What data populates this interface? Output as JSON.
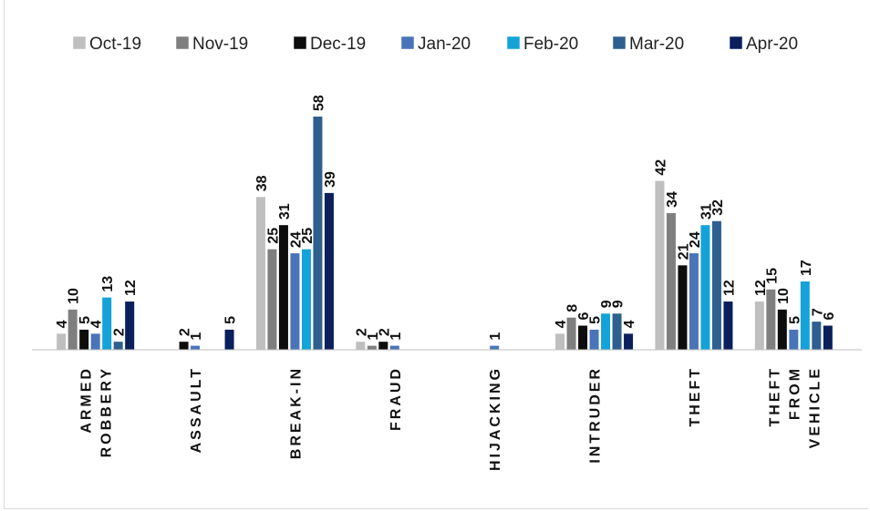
{
  "chart_data": {
    "type": "bar",
    "categories": [
      [
        "ARMED",
        "ROBBERY"
      ],
      [
        "ASSAULT"
      ],
      [
        "BREAK-IN"
      ],
      [
        "FRAUD"
      ],
      [
        "HIJACKING"
      ],
      [
        "INTRUDER"
      ],
      [
        "THEFT"
      ],
      [
        "THEFT",
        "FROM",
        "VEHICLE"
      ]
    ],
    "series": [
      {
        "name": "Oct-19",
        "color": "#bfbfbf",
        "values": [
          4,
          0,
          38,
          2,
          0,
          4,
          42,
          12
        ]
      },
      {
        "name": "Nov-19",
        "color": "#7f7f7f",
        "values": [
          10,
          0,
          25,
          1,
          0,
          8,
          34,
          15
        ]
      },
      {
        "name": "Dec-19",
        "color": "#0d0d0d",
        "values": [
          5,
          2,
          31,
          2,
          0,
          6,
          21,
          10
        ]
      },
      {
        "name": "Jan-20",
        "color": "#4a74b8",
        "values": [
          4,
          1,
          24,
          1,
          1,
          5,
          24,
          5
        ]
      },
      {
        "name": "Feb-20",
        "color": "#13a3d8",
        "values": [
          13,
          0,
          25,
          0,
          0,
          9,
          31,
          17
        ]
      },
      {
        "name": "Mar-20",
        "color": "#2e5f8f",
        "values": [
          2,
          0,
          58,
          0,
          0,
          9,
          32,
          7
        ]
      },
      {
        "name": "Apr-20",
        "color": "#0a1f5c",
        "values": [
          12,
          5,
          39,
          0,
          0,
          4,
          12,
          6
        ]
      }
    ],
    "data_labels": [
      [
        "4",
        "10",
        "5",
        "4",
        "13",
        "2",
        "12"
      ],
      [
        "",
        "",
        "2",
        "1",
        "",
        "",
        "5"
      ],
      [
        "38",
        "25",
        "31",
        "24",
        "25",
        "58",
        "39"
      ],
      [
        "2",
        "1",
        "2",
        "1",
        "",
        "",
        ""
      ],
      [
        "",
        "",
        "",
        "1",
        "",
        "",
        ""
      ],
      [
        "4",
        "8",
        "6",
        "5",
        "9",
        "9",
        "4"
      ],
      [
        "42",
        "34",
        "21",
        "24",
        "31",
        "32",
        "12"
      ],
      [
        "12",
        "15",
        "10",
        "5",
        "17",
        "7",
        "6"
      ]
    ],
    "ylim": [
      0,
      60
    ],
    "legend": "top",
    "grid": false,
    "title": "",
    "xlabel": "",
    "ylabel": ""
  }
}
